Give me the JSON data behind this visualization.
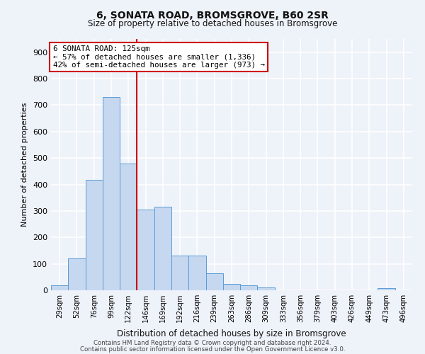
{
  "title1": "6, SONATA ROAD, BROMSGROVE, B60 2SR",
  "title2": "Size of property relative to detached houses in Bromsgrove",
  "xlabel": "Distribution of detached houses by size in Bromsgrove",
  "ylabel": "Number of detached properties",
  "categories": [
    "29sqm",
    "52sqm",
    "76sqm",
    "99sqm",
    "122sqm",
    "146sqm",
    "169sqm",
    "192sqm",
    "216sqm",
    "239sqm",
    "263sqm",
    "286sqm",
    "309sqm",
    "333sqm",
    "356sqm",
    "379sqm",
    "403sqm",
    "426sqm",
    "449sqm",
    "473sqm",
    "496sqm"
  ],
  "values": [
    18,
    120,
    418,
    730,
    478,
    305,
    315,
    130,
    130,
    65,
    25,
    18,
    10,
    0,
    0,
    0,
    0,
    0,
    0,
    8,
    0
  ],
  "bar_color": "#c5d8f0",
  "bar_edge_color": "#5b9bd5",
  "red_line_x": 4.5,
  "annotation_text_line1": "6 SONATA ROAD: 125sqm",
  "annotation_text_line2": "← 57% of detached houses are smaller (1,336)",
  "annotation_text_line3": "42% of semi-detached houses are larger (973) →",
  "annotation_box_color": "#ffffff",
  "annotation_box_edge_color": "#cc0000",
  "red_line_color": "#cc0000",
  "ylim": [
    0,
    950
  ],
  "yticks": [
    0,
    100,
    200,
    300,
    400,
    500,
    600,
    700,
    800,
    900
  ],
  "footer1": "Contains HM Land Registry data © Crown copyright and database right 2024.",
  "footer2": "Contains public sector information licensed under the Open Government Licence v3.0.",
  "bg_color": "#eef2f9",
  "grid_color": "#ffffff"
}
